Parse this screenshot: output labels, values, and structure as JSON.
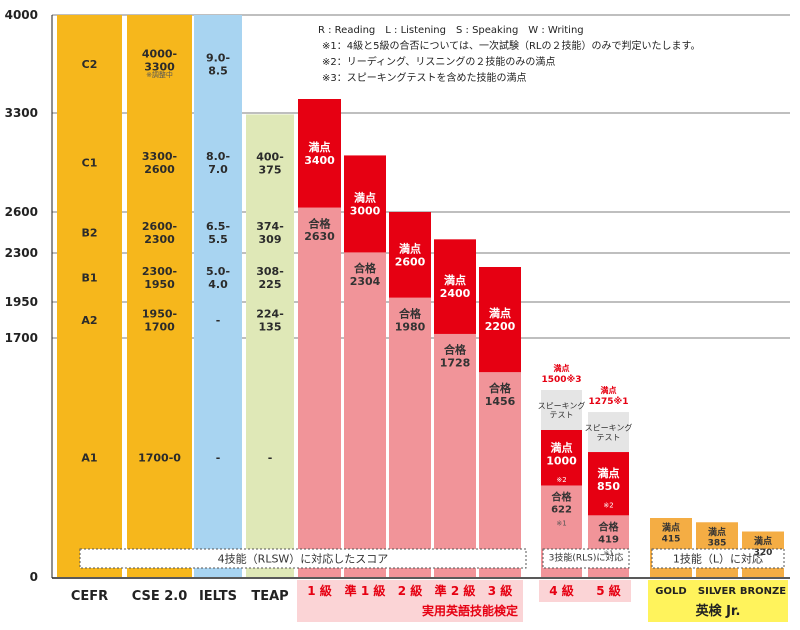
{
  "chart_data": {
    "type": "bar",
    "y_ticks": [
      0,
      1700,
      1950,
      2300,
      2600,
      3300,
      4000
    ],
    "ylim": [
      0,
      4000
    ],
    "gridlines": true,
    "columns": [
      {
        "key": "cefr",
        "label": "CEFR",
        "color": "#f6b71c",
        "bands": [
          {
            "from": 3300,
            "to": 4000,
            "text": "C2"
          },
          {
            "from": 2600,
            "to": 3300,
            "text": "C1"
          },
          {
            "from": 2300,
            "to": 2600,
            "text": "B2"
          },
          {
            "from": 1950,
            "to": 2300,
            "text": "B1"
          },
          {
            "from": 1700,
            "to": 1950,
            "text": "A2"
          },
          {
            "from": 0,
            "to": 1700,
            "text": "A1"
          }
        ]
      },
      {
        "key": "cse",
        "label": "CSE 2.0",
        "color": "#f6b71c",
        "bands": [
          {
            "from": 3300,
            "to": 4000,
            "text": "4000-\n3300",
            "note": "※調整中"
          },
          {
            "from": 2600,
            "to": 3300,
            "text": "3300-\n2600"
          },
          {
            "from": 2300,
            "to": 2600,
            "text": "2600-\n2300"
          },
          {
            "from": 1950,
            "to": 2300,
            "text": "2300-\n1950"
          },
          {
            "from": 1700,
            "to": 1950,
            "text": "1950-\n1700"
          },
          {
            "from": 0,
            "to": 1700,
            "text": "1700-0"
          }
        ]
      },
      {
        "key": "ielts",
        "label": "IELTS",
        "color": "#a8d4f1",
        "bands": [
          {
            "from": 3300,
            "to": 4000,
            "text": "9.0-\n8.5"
          },
          {
            "from": 2600,
            "to": 3300,
            "text": "8.0-\n7.0"
          },
          {
            "from": 2300,
            "to": 2600,
            "text": "6.5-\n5.5"
          },
          {
            "from": 1950,
            "to": 2300,
            "text": "5.0-\n4.0"
          },
          {
            "from": 1700,
            "to": 1950,
            "text": "-"
          },
          {
            "from": 0,
            "to": 1700,
            "text": "-"
          }
        ]
      },
      {
        "key": "teap",
        "label": "TEAP",
        "color": "#dfe8b7",
        "top": 3290,
        "bands": [
          {
            "from": 2600,
            "to": 3290,
            "text": "400-\n375"
          },
          {
            "from": 2300,
            "to": 2600,
            "text": "374-\n309"
          },
          {
            "from": 1950,
            "to": 2300,
            "text": "308-\n225"
          },
          {
            "from": 1700,
            "to": 1950,
            "text": "224-\n135"
          },
          {
            "from": 0,
            "to": 1700,
            "text": "-"
          }
        ]
      }
    ],
    "eiken": [
      {
        "label": "1 級",
        "full": 3400,
        "pass": 2630
      },
      {
        "label": "準 1 級",
        "full": 3000,
        "pass": 2304
      },
      {
        "label": "2 級",
        "full": 2600,
        "pass": 1980
      },
      {
        "label": "準 2 級",
        "full": 2400,
        "pass": 1728
      },
      {
        "label": "3 級",
        "full": 2200,
        "pass": 1456
      }
    ],
    "eiken_lower": [
      {
        "label": "4 級",
        "full_total": 1500,
        "full_total_note": "※3",
        "full": 1000,
        "full_note": "※2",
        "pass": 622,
        "pass_note": "※1",
        "speaking_label": "スピーキング\nテスト"
      },
      {
        "label": "5 級",
        "full_total": 1275,
        "full_total_note": "※1",
        "full": 850,
        "full_note": "※2",
        "pass": 419,
        "pass_note": "※1",
        "speaking_label": "スピーキング\nテスト"
      }
    ],
    "eiken_jr": [
      {
        "label": "GOLD",
        "full": 415
      },
      {
        "label": "SILVER",
        "full": 385
      },
      {
        "label": "BRONZE",
        "full": 320
      }
    ],
    "full_label": "満点",
    "pass_label": "合格",
    "group_labels": {
      "four_skills": "4技能（RLSW）に対応したスコア",
      "three_skills": "3技能(RLS)に対応",
      "one_skill": "1技能（L）に対応",
      "eiken": "実用英語技能検定",
      "eiken_jr": "英検 Jr."
    },
    "notes": [
      "R : Reading　L : Listening　S : Speaking　W : Writing",
      "※1：4級と5級の合否については、一次試験（RLの２技能）のみで判定いたします。",
      "※2：リーディング、リスニングの２技能のみの満点",
      "※3：スピーキングテストを含めた技能の満点"
    ],
    "colors": {
      "full": "#e60012",
      "pass": "#f19499",
      "speaking": "#e5e5e5",
      "jr": "#f4ad44",
      "pink_band": "#fbd4d6",
      "yellow_band": "#fff35c",
      "grid": "#555555",
      "label_text": "#2b2b2b",
      "red_text": "#e60012"
    }
  }
}
